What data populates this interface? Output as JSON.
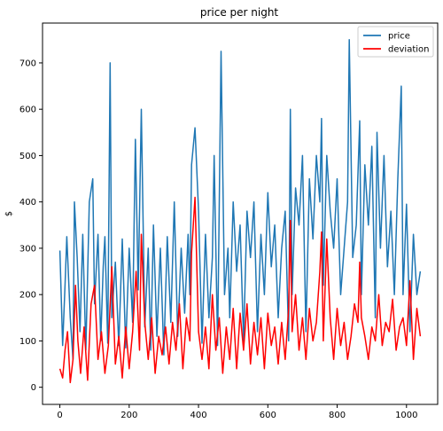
{
  "chart_data": {
    "type": "line",
    "title": "price per night",
    "xlabel": "",
    "ylabel": "$",
    "xlim": [
      -50,
      1090
    ],
    "ylim": [
      -37,
      786
    ],
    "x_ticks": [
      0,
      200,
      400,
      600,
      800,
      1000
    ],
    "y_ticks": [
      0,
      100,
      200,
      300,
      400,
      500,
      600,
      700
    ],
    "grid": false,
    "legend_position": "top-right",
    "series": [
      {
        "name": "price",
        "color": "#1f77b4",
        "x": [
          0,
          8,
          15,
          20,
          30,
          38,
          42,
          50,
          58,
          66,
          75,
          85,
          95,
          100,
          110,
          118,
          125,
          130,
          138,
          145,
          150,
          160,
          170,
          180,
          190,
          200,
          210,
          218,
          226,
          235,
          245,
          255,
          262,
          270,
          280,
          290,
          300,
          310,
          320,
          330,
          340,
          350,
          360,
          370,
          375,
          380,
          390,
          400,
          410,
          420,
          430,
          440,
          445,
          455,
          465,
          475,
          485,
          490,
          500,
          510,
          520,
          530,
          540,
          550,
          560,
          570,
          580,
          590,
          600,
          610,
          620,
          630,
          640,
          650,
          660,
          665,
          670,
          680,
          690,
          700,
          710,
          720,
          730,
          740,
          750,
          755,
          760,
          770,
          780,
          790,
          800,
          810,
          820,
          830,
          835,
          845,
          855,
          865,
          870,
          880,
          890,
          900,
          910,
          915,
          925,
          935,
          945,
          955,
          965,
          975,
          985,
          990,
          1000,
          1010,
          1020,
          1030,
          1040
        ],
        "values": [
          295,
          90,
          220,
          325,
          150,
          60,
          400,
          280,
          120,
          330,
          80,
          400,
          450,
          180,
          330,
          100,
          260,
          325,
          95,
          700,
          150,
          270,
          90,
          320,
          85,
          300,
          140,
          535,
          210,
          600,
          130,
          300,
          80,
          350,
          110,
          300,
          70,
          325,
          140,
          400,
          110,
          300,
          160,
          330,
          200,
          480,
          560,
          380,
          95,
          330,
          150,
          280,
          500,
          90,
          725,
          200,
          300,
          150,
          400,
          250,
          350,
          100,
          380,
          280,
          400,
          120,
          330,
          200,
          420,
          260,
          350,
          150,
          300,
          380,
          100,
          600,
          200,
          430,
          350,
          500,
          120,
          450,
          320,
          500,
          400,
          580,
          220,
          500,
          380,
          300,
          450,
          200,
          300,
          400,
          750,
          280,
          350,
          575,
          200,
          480,
          350,
          520,
          150,
          550,
          300,
          500,
          260,
          380,
          200,
          450,
          650,
          200,
          395,
          120,
          330,
          200,
          250
        ]
      },
      {
        "name": "deviation",
        "color": "#ff0000",
        "x": [
          0,
          8,
          15,
          22,
          30,
          38,
          45,
          52,
          60,
          70,
          80,
          90,
          100,
          110,
          120,
          130,
          140,
          150,
          160,
          170,
          180,
          190,
          200,
          210,
          220,
          230,
          235,
          245,
          255,
          265,
          275,
          285,
          295,
          305,
          315,
          325,
          335,
          345,
          355,
          365,
          375,
          380,
          390,
          400,
          410,
          420,
          430,
          440,
          450,
          460,
          470,
          480,
          490,
          500,
          510,
          520,
          530,
          540,
          550,
          560,
          570,
          580,
          590,
          600,
          610,
          620,
          630,
          640,
          650,
          660,
          665,
          670,
          680,
          690,
          700,
          710,
          720,
          730,
          740,
          750,
          755,
          760,
          770,
          780,
          790,
          800,
          810,
          820,
          830,
          840,
          850,
          860,
          865,
          870,
          880,
          890,
          900,
          910,
          920,
          930,
          940,
          950,
          960,
          970,
          980,
          990,
          1000,
          1010,
          1020,
          1030,
          1040
        ],
        "values": [
          40,
          20,
          80,
          120,
          10,
          60,
          220,
          100,
          30,
          130,
          15,
          180,
          220,
          60,
          120,
          30,
          90,
          260,
          50,
          110,
          20,
          130,
          40,
          120,
          250,
          80,
          330,
          140,
          60,
          150,
          30,
          110,
          70,
          130,
          50,
          140,
          80,
          180,
          40,
          150,
          100,
          290,
          410,
          120,
          60,
          130,
          40,
          200,
          80,
          150,
          30,
          130,
          60,
          170,
          40,
          160,
          80,
          180,
          50,
          140,
          70,
          150,
          40,
          160,
          90,
          130,
          50,
          140,
          60,
          170,
          360,
          120,
          200,
          80,
          150,
          60,
          170,
          100,
          140,
          250,
          335,
          100,
          320,
          150,
          60,
          170,
          90,
          140,
          60,
          110,
          180,
          140,
          270,
          150,
          110,
          60,
          130,
          100,
          200,
          90,
          140,
          120,
          190,
          80,
          130,
          150,
          90,
          230,
          60,
          170,
          110
        ]
      }
    ]
  }
}
